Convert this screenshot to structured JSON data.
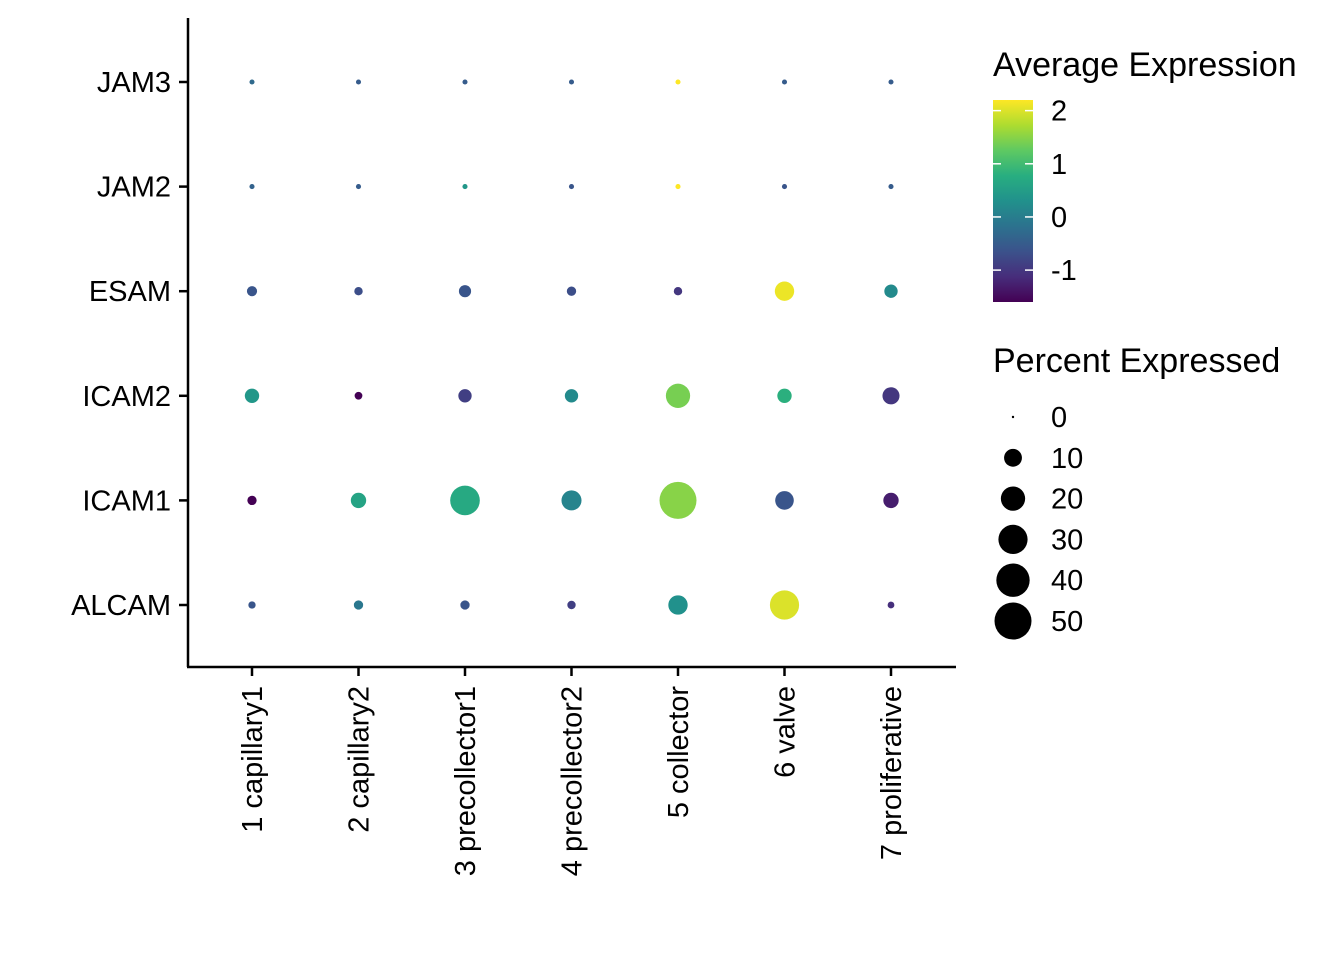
{
  "chart_data": {
    "type": "scatter",
    "subtype": "dot-plot",
    "title": "",
    "xlabel": "",
    "ylabel": "",
    "categories": [
      "1 capillary1",
      "2 capillary2",
      "3 precollector1",
      "4 precollector2",
      "5 collector",
      "6 valve",
      "7 proliferative"
    ],
    "genes": [
      "ALCAM",
      "ICAM1",
      "ICAM2",
      "ESAM",
      "JAM2",
      "JAM3"
    ],
    "series": [
      {
        "name": "ALCAM",
        "avg_expression": [
          -0.6,
          -0.1,
          -0.6,
          -0.9,
          0.3,
          2.0,
          -1.1
        ],
        "percent_expressed": [
          1,
          2,
          2,
          1.5,
          12,
          30,
          0.8
        ]
      },
      {
        "name": "ICAM1",
        "avg_expression": [
          -1.6,
          0.6,
          0.7,
          0.1,
          1.5,
          -0.6,
          -1.3
        ],
        "percent_expressed": [
          2,
          7,
          31,
          13,
          50,
          11,
          7
        ]
      },
      {
        "name": "ICAM2",
        "avg_expression": [
          0.4,
          -1.6,
          -0.9,
          0.2,
          1.4,
          0.8,
          -1.0
        ],
        "percent_expressed": [
          6,
          1.2,
          5,
          5,
          20,
          6,
          9
        ]
      },
      {
        "name": "ESAM",
        "avg_expression": [
          -0.6,
          -0.7,
          -0.6,
          -0.7,
          -1.0,
          2.1,
          0.2
        ],
        "percent_expressed": [
          2.5,
          1.5,
          4,
          2,
          1.5,
          12,
          5
        ]
      },
      {
        "name": "JAM2",
        "avg_expression": [
          -0.4,
          -0.5,
          0.4,
          -0.6,
          2.2,
          -0.6,
          -0.5
        ],
        "percent_expressed": [
          0.3,
          0.3,
          0.3,
          0.3,
          0.3,
          0.3,
          0.3
        ]
      },
      {
        "name": "JAM3",
        "avg_expression": [
          -0.3,
          -0.5,
          -0.5,
          -0.5,
          2.2,
          -0.5,
          -0.5
        ],
        "percent_expressed": [
          0.3,
          0.3,
          0.3,
          0.3,
          0.3,
          0.3,
          0.3
        ]
      }
    ],
    "color_legend": {
      "title": "Average Expression",
      "min": -1.6,
      "max": 2.2,
      "ticks": [
        2,
        1,
        0,
        -1
      ],
      "colormap": "viridis"
    },
    "size_legend": {
      "title": "Percent Expressed",
      "ticks": [
        0,
        10,
        20,
        30,
        40,
        50
      ]
    },
    "grid": false,
    "legend_position": "right"
  }
}
